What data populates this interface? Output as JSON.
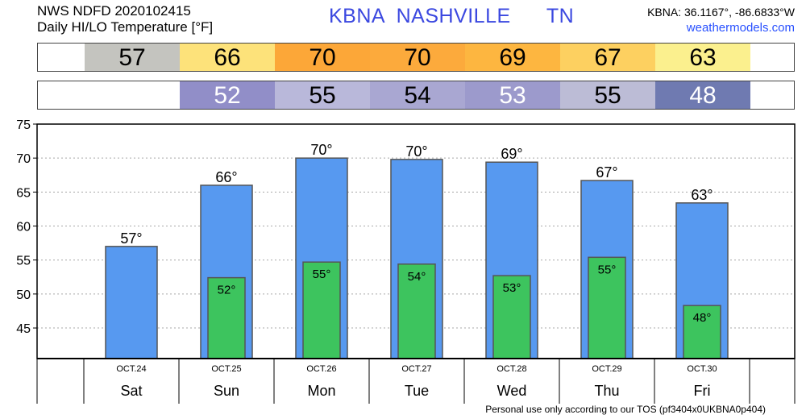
{
  "header": {
    "line1": "NWS NDFD 2020102415",
    "line2": "Daily HI/LO Temperature [°F]",
    "station_title": "KBNA  NASHVILLE      TN",
    "coords": "KBNA: 36.1167°, -86.6833°W",
    "site": "weathermodels.com"
  },
  "strips": {
    "hi": [
      {
        "label": "57",
        "color": "#c4c4bf",
        "text_color": "#000000"
      },
      {
        "label": "66",
        "color": "#fde27a",
        "text_color": "#000000"
      },
      {
        "label": "70",
        "color": "#fca738",
        "text_color": "#000000"
      },
      {
        "label": "70",
        "color": "#fcaa3c",
        "text_color": "#000000"
      },
      {
        "label": "69",
        "color": "#fdb640",
        "text_color": "#000000"
      },
      {
        "label": "67",
        "color": "#fdd060",
        "text_color": "#000000"
      },
      {
        "label": "63",
        "color": "#fbf08e",
        "text_color": "#000000"
      }
    ],
    "lo": [
      {
        "label": "",
        "color": "#ffffff",
        "text_color": "#000000"
      },
      {
        "label": "52",
        "color": "#918ec8",
        "text_color": "#ffffff"
      },
      {
        "label": "55",
        "color": "#b9b8da",
        "text_color": "#000000"
      },
      {
        "label": "54",
        "color": "#a9a7d2",
        "text_color": "#000000"
      },
      {
        "label": "53",
        "color": "#9c9acc",
        "text_color": "#ffffff"
      },
      {
        "label": "55",
        "color": "#bcbcd6",
        "text_color": "#000000"
      },
      {
        "label": "48",
        "color": "#6f7ab1",
        "text_color": "#ffffff"
      }
    ]
  },
  "chart_data": {
    "type": "bar",
    "categories": [
      "Sat",
      "Sun",
      "Mon",
      "Tue",
      "Wed",
      "Thu",
      "Fri"
    ],
    "dates": [
      "OCT.24",
      "OCT.25",
      "OCT.26",
      "OCT.27",
      "OCT.28",
      "OCT.29",
      "OCT.30"
    ],
    "series": [
      {
        "values": [
          57,
          66,
          70,
          70,
          69,
          67,
          63
        ],
        "display_values": [
          57,
          66,
          70,
          69.8,
          69.4,
          66.7,
          63.4
        ],
        "color": "#5799f0"
      },
      {
        "values": [
          null,
          52,
          55,
          54,
          53,
          55,
          48
        ],
        "display_values": [
          null,
          52.4,
          54.7,
          54.4,
          52.7,
          55.4,
          48.3
        ],
        "color": "#3dc45e"
      }
    ],
    "ylim": [
      40.5,
      75
    ],
    "yticks": [
      45,
      50,
      55,
      60,
      65,
      70,
      75
    ],
    "grid": true,
    "degree_suffix": "°"
  },
  "footer": "Personal use only according to our TOS (pf3404x0UKBNA0p404)"
}
